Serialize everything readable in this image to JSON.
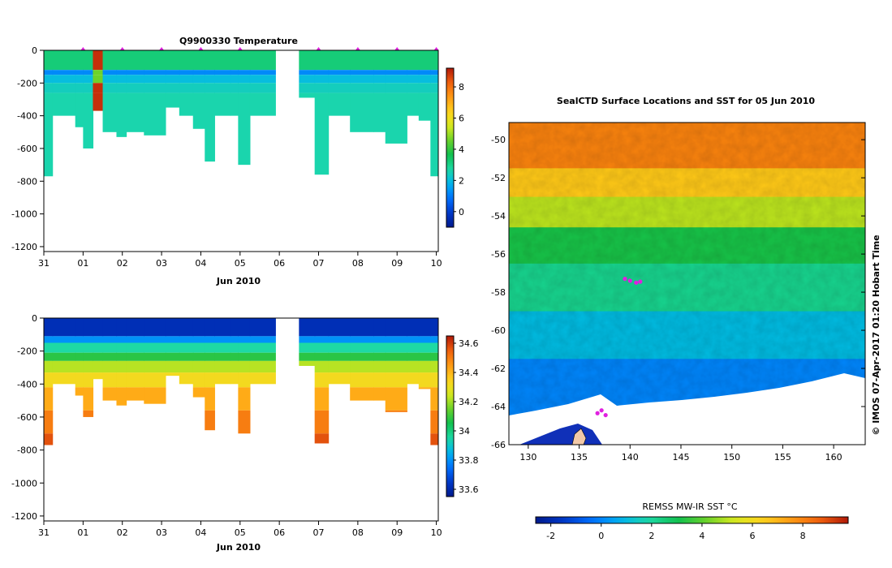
{
  "colors": {
    "rainbow": [
      "#001a8c",
      "#0038c8",
      "#0070ff",
      "#00b4f0",
      "#1ed9a4",
      "#0fc050",
      "#6ad22a",
      "#d8ea20",
      "#ffd21e",
      "#ff9a14",
      "#f0600e",
      "#b01808"
    ]
  },
  "chart_data": [
    {
      "type": "heatmap",
      "name": "temperature-profile",
      "title": "Q9900330  Temperature",
      "xlabel": "Jun 2010",
      "ylabel": "",
      "x_tick_labels": [
        "31",
        "01",
        "02",
        "03",
        "04",
        "05",
        "06",
        "07",
        "08",
        "09",
        "10"
      ],
      "x_tick_days": [
        0,
        1,
        2,
        3,
        4,
        5,
        6,
        7,
        8,
        9,
        10
      ],
      "y_tick_labels": [
        "0",
        "-200",
        "-400",
        "-600",
        "-800",
        "-1000",
        "-1200"
      ],
      "y_tick_values": [
        0,
        -200,
        -400,
        -600,
        -800,
        -1000,
        -1200
      ],
      "ylim": [
        -1230,
        0
      ],
      "xlim": [
        0,
        10.05
      ],
      "profile_marker_days": [
        1,
        2,
        3,
        4,
        5,
        7,
        8,
        9,
        10
      ],
      "colorbar": {
        "min": -1,
        "max": 9.2,
        "ticks": [
          0,
          2,
          4,
          6,
          8
        ],
        "tick_labels": [
          "0",
          "2",
          "4",
          "6",
          "8"
        ]
      },
      "profiles": [
        {
          "start": 0.0,
          "end": 0.22,
          "depth": 770
        },
        {
          "start": 0.22,
          "end": 0.8,
          "depth": 400
        },
        {
          "start": 0.8,
          "end": 1.0,
          "depth": 470
        },
        {
          "start": 1.0,
          "end": 1.25,
          "depth": 600
        },
        {
          "start": 1.25,
          "end": 1.5,
          "depth": 370,
          "anomaly": true
        },
        {
          "start": 1.5,
          "end": 1.85,
          "depth": 500
        },
        {
          "start": 1.85,
          "end": 2.1,
          "depth": 530
        },
        {
          "start": 2.1,
          "end": 2.55,
          "depth": 500
        },
        {
          "start": 2.55,
          "end": 3.1,
          "depth": 520
        },
        {
          "start": 3.1,
          "end": 3.45,
          "depth": 350
        },
        {
          "start": 3.45,
          "end": 3.8,
          "depth": 400
        },
        {
          "start": 3.8,
          "end": 4.1,
          "depth": 480
        },
        {
          "start": 4.1,
          "end": 4.35,
          "depth": 680
        },
        {
          "start": 4.35,
          "end": 4.75,
          "depth": 400
        },
        {
          "start": 4.75,
          "end": 4.95,
          "depth": 400
        },
        {
          "start": 4.95,
          "end": 5.25,
          "depth": 700
        },
        {
          "start": 5.25,
          "end": 5.9,
          "depth": 400
        },
        {
          "start": 6.5,
          "end": 6.9,
          "depth": 290
        },
        {
          "start": 6.9,
          "end": 7.25,
          "depth": 760
        },
        {
          "start": 7.25,
          "end": 7.8,
          "depth": 400
        },
        {
          "start": 7.8,
          "end": 8.4,
          "depth": 500
        },
        {
          "start": 8.4,
          "end": 8.7,
          "depth": 500
        },
        {
          "start": 8.7,
          "end": 9.25,
          "depth": 570
        },
        {
          "start": 9.25,
          "end": 9.55,
          "depth": 400
        },
        {
          "start": 9.55,
          "end": 9.85,
          "depth": 430
        },
        {
          "start": 9.85,
          "end": 10.05,
          "depth": 770
        }
      ],
      "layers": [
        {
          "top": 0,
          "bottom": 120,
          "value": 3.2
        },
        {
          "top": 120,
          "bottom": 150,
          "value": 1.2
        },
        {
          "top": 150,
          "bottom": 200,
          "value": 2.0
        },
        {
          "top": 200,
          "bottom": 260,
          "value": 2.4
        },
        {
          "top": 260,
          "bottom": 1300,
          "value": 2.6
        }
      ]
    },
    {
      "type": "heatmap",
      "name": "salinity-profile",
      "title": "",
      "xlabel": "Jun 2010",
      "x_tick_labels": [
        "31",
        "01",
        "02",
        "03",
        "04",
        "05",
        "06",
        "07",
        "08",
        "09",
        "10"
      ],
      "x_tick_days": [
        0,
        1,
        2,
        3,
        4,
        5,
        6,
        7,
        8,
        9,
        10
      ],
      "y_tick_labels": [
        "0",
        "-200",
        "-400",
        "-600",
        "-800",
        "-1000",
        "-1200"
      ],
      "y_tick_values": [
        0,
        -200,
        -400,
        -600,
        -800,
        -1000,
        -1200
      ],
      "ylim": [
        -1230,
        0
      ],
      "xlim": [
        0,
        10.05
      ],
      "colorbar": {
        "min": 33.55,
        "max": 34.65,
        "ticks": [
          33.6,
          33.8,
          34,
          34.2,
          34.4,
          34.6
        ],
        "tick_labels": [
          "33.6",
          "33.8",
          "34",
          "34.2",
          "34.4",
          "34.6"
        ]
      },
      "layers": [
        {
          "top": 0,
          "bottom": 110,
          "value": 33.62
        },
        {
          "top": 110,
          "bottom": 150,
          "value": 33.8
        },
        {
          "top": 150,
          "bottom": 210,
          "value": 33.95
        },
        {
          "top": 210,
          "bottom": 260,
          "value": 34.08
        },
        {
          "top": 260,
          "bottom": 330,
          "value": 34.22
        },
        {
          "top": 330,
          "bottom": 420,
          "value": 34.32
        },
        {
          "top": 420,
          "bottom": 560,
          "value": 34.42
        },
        {
          "top": 560,
          "bottom": 700,
          "value": 34.5
        },
        {
          "top": 700,
          "bottom": 1300,
          "value": 34.57
        }
      ]
    },
    {
      "type": "heatmap",
      "name": "sst-map",
      "title": "SealCTD Surface Locations and SST for 05 Jun 2010",
      "xlabel": "",
      "x_tick_labels": [
        "130",
        "135",
        "140",
        "145",
        "150",
        "155",
        "160"
      ],
      "x_tick_values": [
        130,
        135,
        140,
        145,
        150,
        155,
        160
      ],
      "y_tick_labels": [
        "-50",
        "-52",
        "-54",
        "-56",
        "-58",
        "-60",
        "-62",
        "-64",
        "-66"
      ],
      "y_tick_values": [
        -50,
        -52,
        -54,
        -56,
        -58,
        -60,
        -62,
        -64,
        -66
      ],
      "xlim": [
        128.1,
        163.1
      ],
      "ylim": [
        -66,
        -49.1
      ],
      "colorbar": {
        "label": "REMSS MW-IR SST °C",
        "min": -2.6,
        "max": 9.8,
        "ticks": [
          -2,
          0,
          2,
          4,
          6,
          8
        ],
        "tick_labels": [
          "-2",
          "0",
          "2",
          "4",
          "6",
          "8"
        ]
      },
      "sst_zones": [
        {
          "lat_top": -49.1,
          "lat_bottom": -51.5,
          "value": 8.0
        },
        {
          "lat_top": -51.5,
          "lat_bottom": -53.0,
          "value": 6.6
        },
        {
          "lat_top": -53.0,
          "lat_bottom": -54.6,
          "value": 5.0
        },
        {
          "lat_top": -54.6,
          "lat_bottom": -56.5,
          "value": 3.2
        },
        {
          "lat_top": -56.5,
          "lat_bottom": -59.0,
          "value": 2.2
        },
        {
          "lat_top": -59.0,
          "lat_bottom": -61.5,
          "value": 1.0
        },
        {
          "lat_top": -61.5,
          "lat_bottom": -66.0,
          "value": 0.0
        }
      ],
      "seal_locations": [
        {
          "lon": 139.5,
          "lat": -57.3
        },
        {
          "lon": 140.0,
          "lat": -57.4
        },
        {
          "lon": 140.6,
          "lat": -57.5
        },
        {
          "lon": 141.0,
          "lat": -57.45
        },
        {
          "lon": 137.2,
          "lat": -64.2
        },
        {
          "lon": 136.8,
          "lat": -64.35
        },
        {
          "lon": 137.6,
          "lat": -64.45
        }
      ],
      "side_caption": "© IMOS 07-Apr-2017 01:20 Hobart Time"
    }
  ]
}
